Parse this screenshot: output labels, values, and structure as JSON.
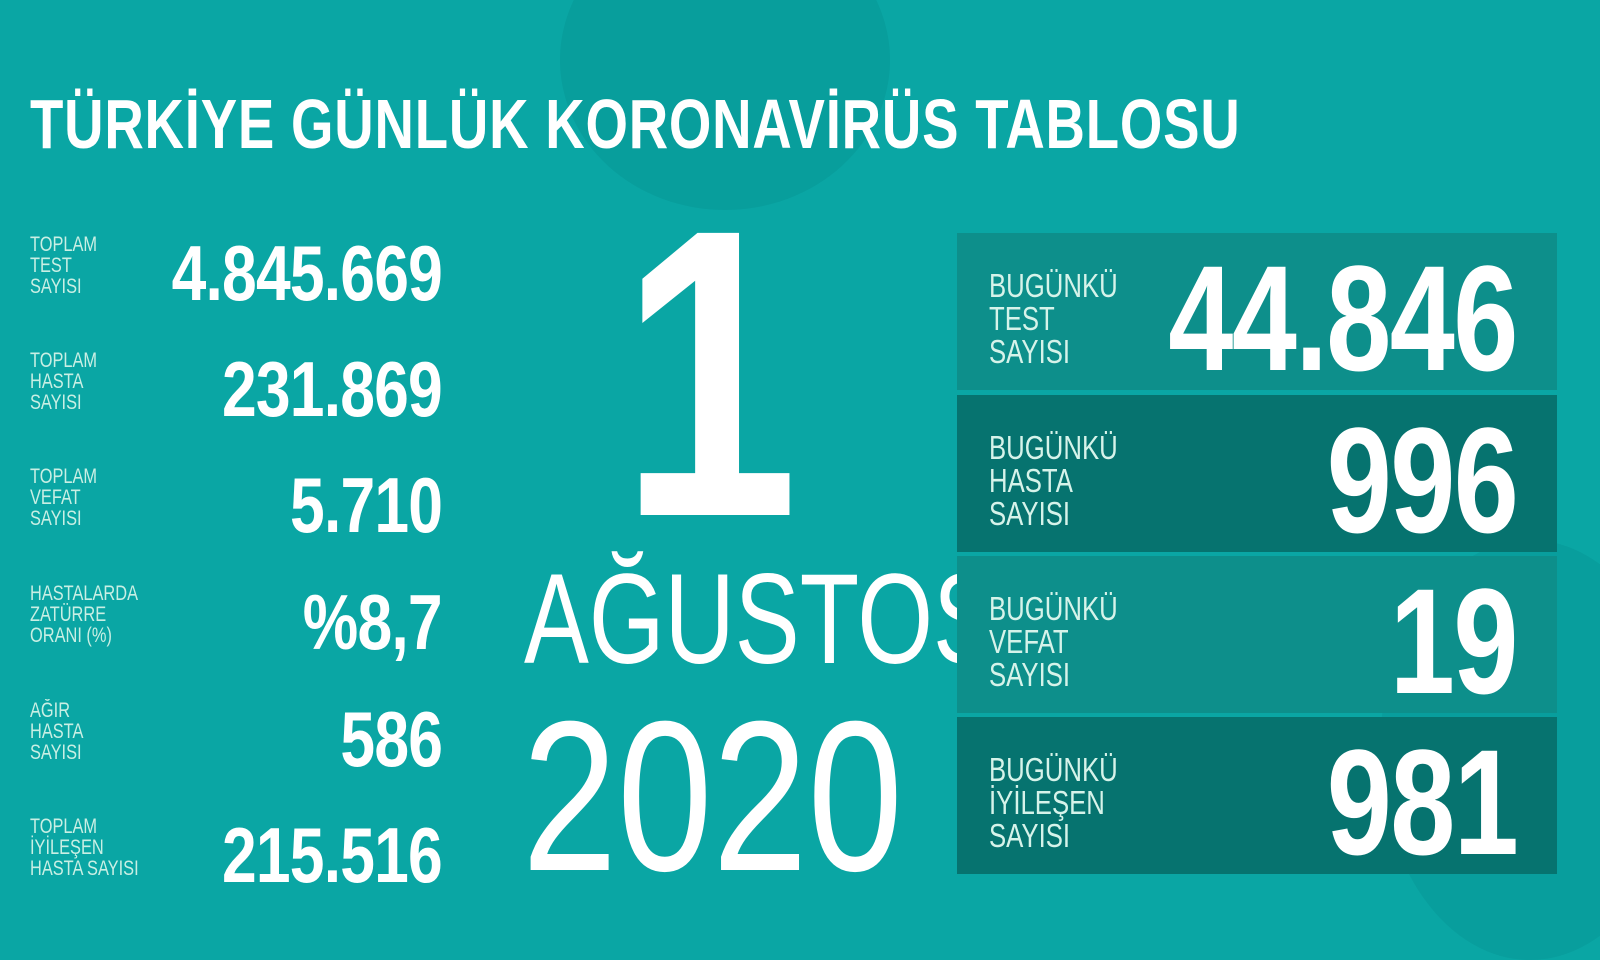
{
  "title": "TÜRKİYE GÜNLÜK KORONAVİRÜS TABLOSU",
  "colors": {
    "background": "#0aa6a4",
    "panel_light": "#0d8f8b",
    "panel_dark": "#06736f",
    "label": "#c9efe4"
  },
  "totals": [
    {
      "label": "TOPLAM\nTEST\nSAYISI",
      "value": "4.845.669"
    },
    {
      "label": "TOPLAM\nHASTA\nSAYISI",
      "value": "231.869"
    },
    {
      "label": "TOPLAM\nVEFAT\nSAYISI",
      "value": "5.710"
    },
    {
      "label": "HASTALARDA\nZATÜRRE\nORANI (%)",
      "value": "%8,7"
    },
    {
      "label": "AĞIR\nHASTA\nSAYISI",
      "value": "586"
    },
    {
      "label": "TOPLAM\nİYİLEŞEN\nHASTA SAYISI",
      "value": "215.516"
    }
  ],
  "date": {
    "day": "1",
    "month": "AĞUSTOS",
    "year": "2020"
  },
  "today": [
    {
      "label": "BUGÜNKÜ\nTEST\nSAYISI",
      "value": "44.846"
    },
    {
      "label": "BUGÜNKÜ\nHASTA\nSAYISI",
      "value": "996"
    },
    {
      "label": "BUGÜNKÜ\nVEFAT\nSAYISI",
      "value": "19"
    },
    {
      "label": "BUGÜNKÜ\nİYİLEŞEN\nSAYISI",
      "value": "981"
    }
  ]
}
